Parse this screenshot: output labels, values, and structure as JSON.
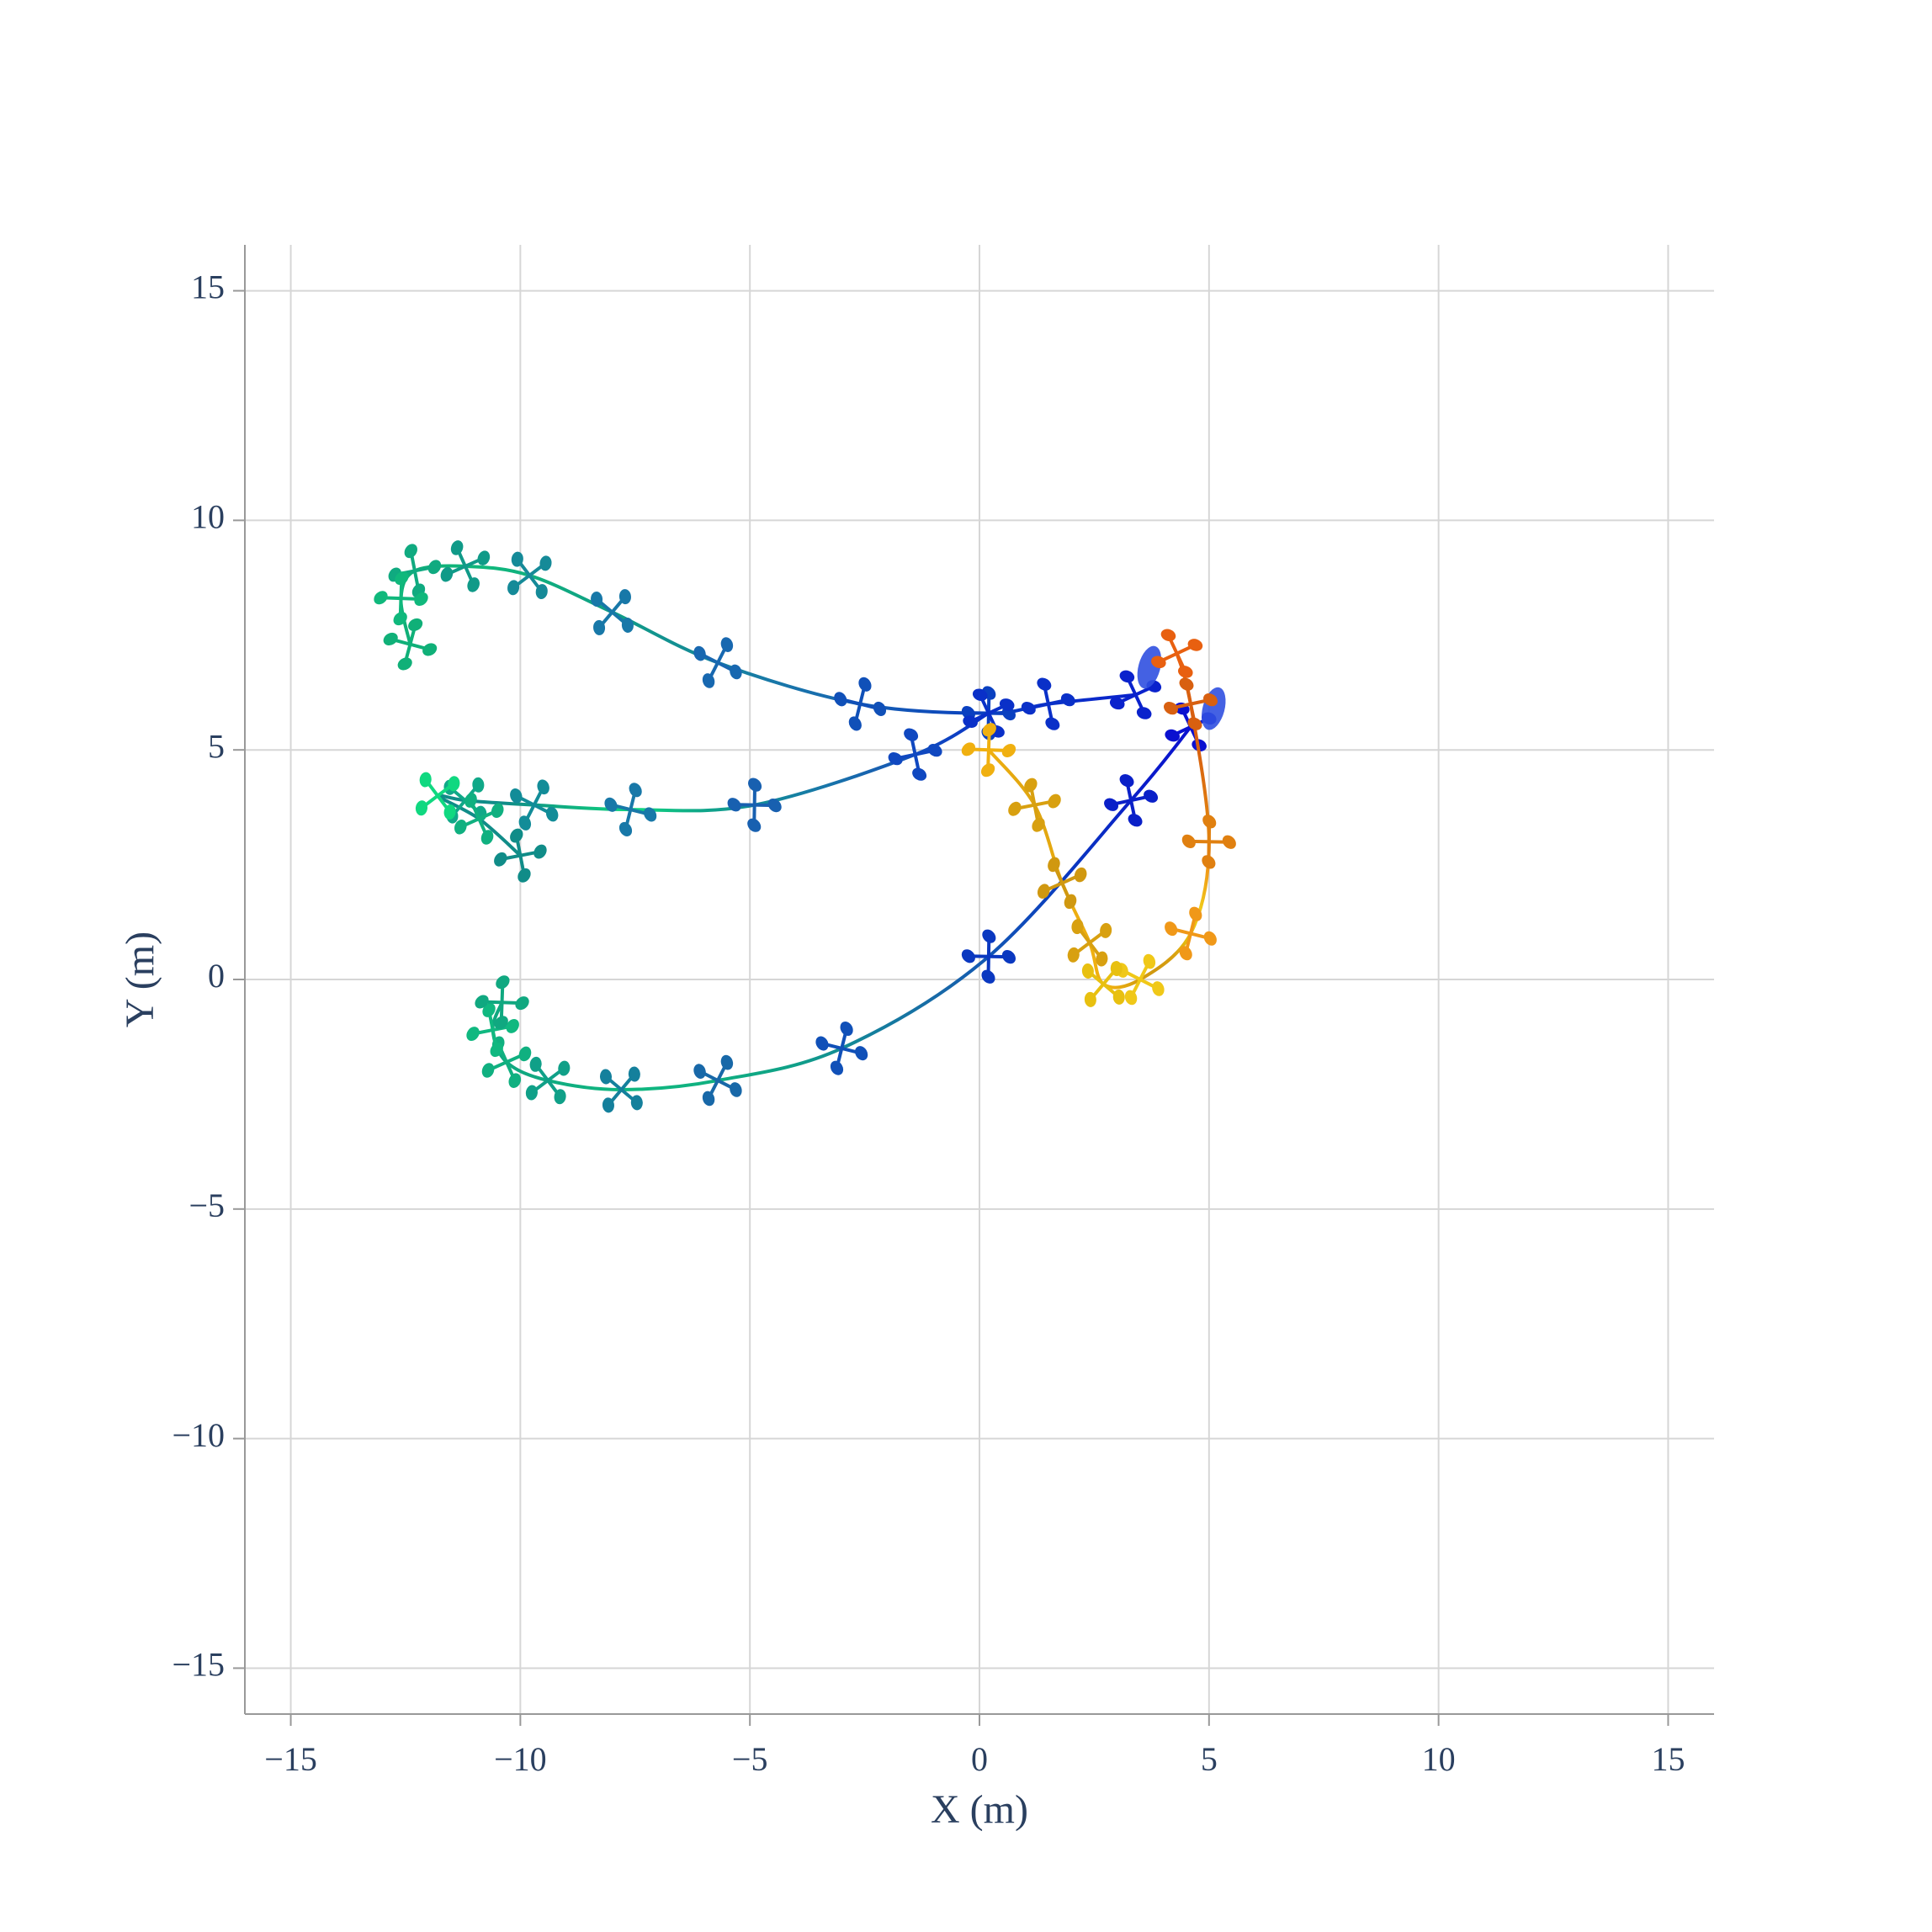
{
  "chart_data": {
    "type": "trajectory",
    "xlabel": "X (m)",
    "ylabel": "Y (m)",
    "xlim": [
      -16,
      16
    ],
    "ylim": [
      -16,
      16
    ],
    "xticks": [
      {
        "value": -15,
        "label": "−15"
      },
      {
        "value": -10,
        "label": "−10"
      },
      {
        "value": -5,
        "label": "−5"
      },
      0,
      5,
      10,
      15
    ],
    "yticks": [
      {
        "value": -15,
        "label": "−15"
      },
      {
        "value": -10,
        "label": "−10"
      },
      {
        "value": -5,
        "label": "−5"
      },
      0,
      5,
      10,
      15
    ],
    "grid": true,
    "series": [
      {
        "start": [
          3.7,
          6.8
        ],
        "color": "#3050e0",
        "x": [
          3.4,
          1.5,
          0.2,
          -2.6,
          -5.7,
          -8.0,
          -9.8,
          -11.2,
          -12.3,
          -12.6,
          -12.4
        ],
        "y": [
          6.2,
          6.0,
          5.8,
          6.0,
          6.9,
          8.0,
          8.8,
          9.0,
          8.9,
          8.3,
          7.3
        ],
        "colors": [
          "#0a22cc",
          "#0a30c8",
          "#0a40c0",
          "#1050b8",
          "#1868b0",
          "#1878a8",
          "#158a98",
          "#109a88",
          "#10aa80",
          "#10b87c",
          "#10b078"
        ]
      },
      {
        "x": [
          0.2,
          -1.4,
          -4.9,
          -7.6,
          -9.7,
          -11.2,
          -11.8,
          -10.9,
          -10.0
        ],
        "y": [
          5.8,
          4.9,
          3.8,
          3.7,
          3.8,
          3.9,
          4.0,
          3.5,
          2.7
        ],
        "colors": [
          "#0a30c8",
          "#1048c0",
          "#1860b0",
          "#1878a8",
          "#128c98",
          "#10a888",
          "#10d880",
          "#10b080",
          "#108c88"
        ]
      },
      {
        "start": [
          5.1,
          5.9
        ],
        "color": "#3050e0",
        "x": [
          4.6,
          3.3,
          0.2,
          -3.0,
          -5.7,
          -7.8,
          -9.4,
          -10.3,
          -10.6,
          -10.4
        ],
        "y": [
          5.5,
          3.9,
          0.5,
          -1.5,
          -2.2,
          -2.4,
          -2.2,
          -1.8,
          -1.1,
          -0.5
        ],
        "colors": [
          "#0a10d0",
          "#0a20c8",
          "#0a38c0",
          "#1050b8",
          "#1868a8",
          "#14809c",
          "#10a088",
          "#10b080",
          "#10b880",
          "#10a880"
        ]
      },
      {
        "x": [
          4.3,
          4.6,
          5.0,
          4.6,
          3.5,
          2.7,
          2.4,
          1.8,
          1.2,
          0.2
        ],
        "y": [
          7.1,
          6.0,
          3.0,
          1.0,
          0.0,
          -0.1,
          0.8,
          2.1,
          3.8,
          5.0
        ],
        "colors": [
          "#e86010",
          "#d86010",
          "#e08010",
          "#f09818",
          "#f0c818",
          "#e8c010",
          "#d8a010",
          "#d09810",
          "#d8a010",
          "#f0b010"
        ]
      }
    ]
  }
}
